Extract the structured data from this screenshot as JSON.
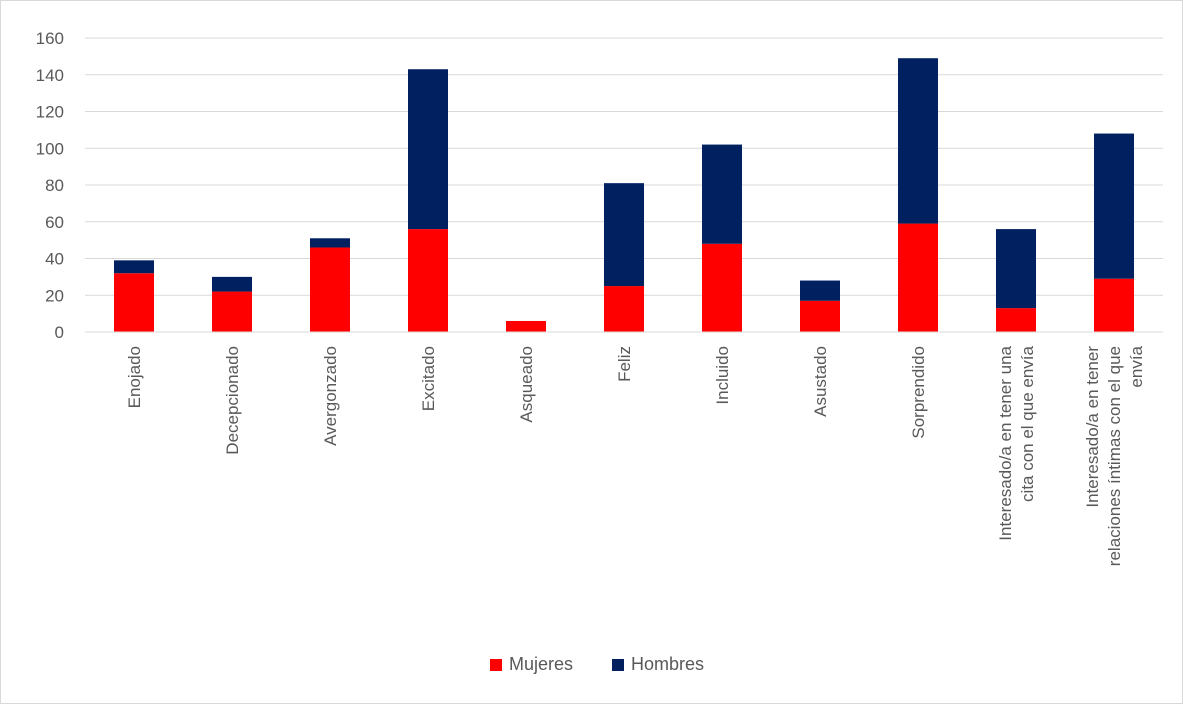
{
  "chart_data": {
    "type": "bar",
    "stacked": true,
    "title": "",
    "xlabel": "",
    "ylabel": "",
    "ylim": [
      0,
      160
    ],
    "yticks": [
      0,
      20,
      40,
      60,
      80,
      100,
      120,
      140,
      160
    ],
    "grid": true,
    "legend_position": "bottom",
    "categories": [
      [
        "Enojado"
      ],
      [
        "Decepcionado"
      ],
      [
        "Avergonzado"
      ],
      [
        "Excitado"
      ],
      [
        "Asqueado"
      ],
      [
        "Feliz"
      ],
      [
        "Incluido"
      ],
      [
        "Asustado"
      ],
      [
        "Sorprendido"
      ],
      [
        "Interesado/a en tener una",
        "cita con el que envía"
      ],
      [
        "Interesado/a en tener",
        "relaciones íntimas con el que",
        "envía"
      ]
    ],
    "series": [
      {
        "name": "Mujeres",
        "color": "#ff0000",
        "values": [
          32,
          22,
          46,
          56,
          6,
          25,
          48,
          17,
          59,
          13,
          29
        ]
      },
      {
        "name": "Hombres",
        "color": "#002060",
        "values": [
          7,
          8,
          5,
          87,
          0,
          56,
          54,
          11,
          90,
          43,
          79
        ]
      }
    ]
  }
}
